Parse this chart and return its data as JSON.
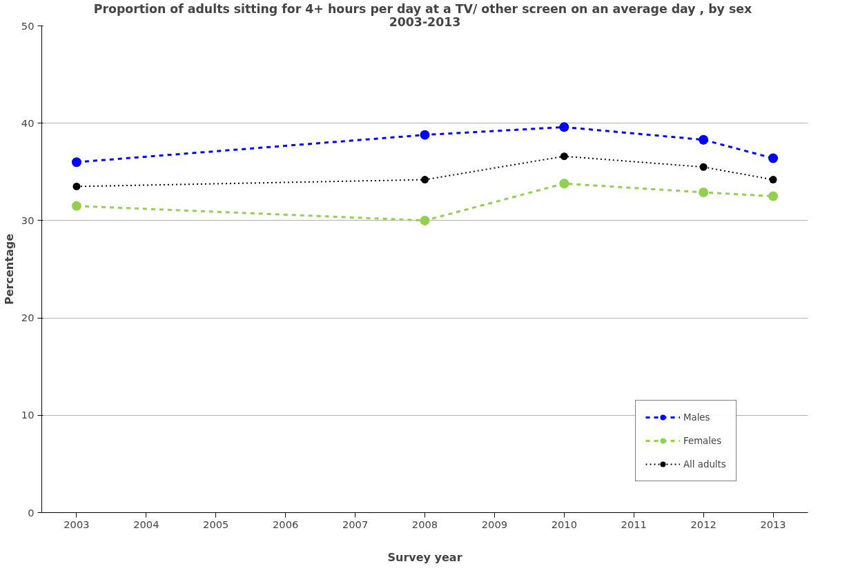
{
  "chart_data": {
    "type": "line",
    "title": "Proportion of adults sitting for 4+ hours per day at  a TV/ other screen on an average day , by sex",
    "subtitle": "2003-2013",
    "xlabel": "Survey year",
    "ylabel": "Percentage",
    "series": [
      {
        "name": "Males",
        "color": "#0000ff",
        "line_style": "dashed",
        "x": [
          2003,
          2008,
          2010,
          2012,
          2013
        ],
        "values": [
          36.0,
          38.8,
          39.6,
          38.3,
          36.4
        ]
      },
      {
        "name": "Females",
        "color": "#92d050",
        "line_style": "dashed",
        "x": [
          2003,
          2008,
          2010,
          2012,
          2013
        ],
        "values": [
          31.5,
          30.0,
          33.8,
          32.9,
          32.5
        ]
      },
      {
        "name": "All adults",
        "color": "#000000",
        "line_style": "dotted",
        "x": [
          2003,
          2008,
          2010,
          2012,
          2013
        ],
        "values": [
          33.5,
          34.2,
          36.6,
          35.5,
          34.2
        ]
      }
    ],
    "xlim": [
      2002.5,
      2013.5
    ],
    "xticks": [
      2003,
      2004,
      2005,
      2006,
      2007,
      2008,
      2009,
      2010,
      2011,
      2012,
      2013
    ],
    "ylim": [
      0,
      50
    ],
    "yticks": [
      0,
      10,
      20,
      30,
      40,
      50
    ],
    "grid": "y",
    "legend": "right",
    "marker": "circle"
  }
}
